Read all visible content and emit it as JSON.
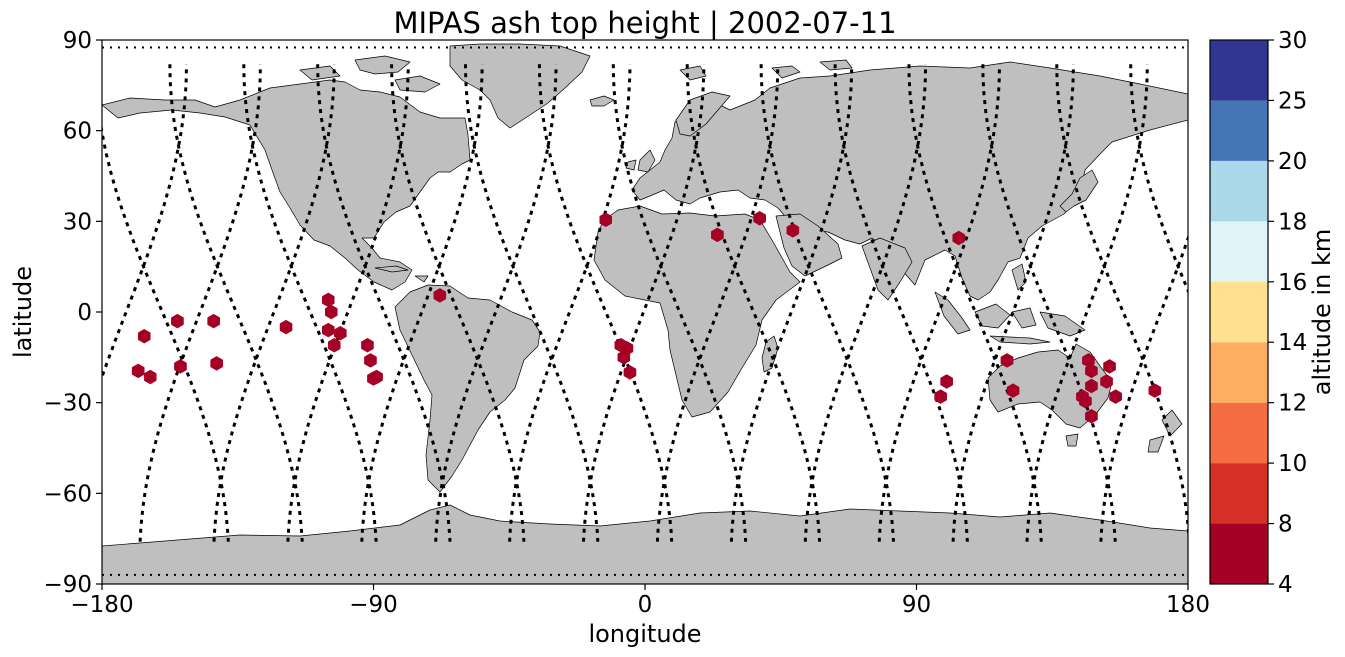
{
  "title": "MIPAS ash top height | 2002-07-11",
  "axes": {
    "xlabel": "longitude",
    "ylabel": "latitude",
    "xlim": [
      -180,
      180
    ],
    "ylim": [
      -90,
      90
    ],
    "xticks": [
      -180,
      -90,
      0,
      90,
      180
    ],
    "yticks": [
      -90,
      -60,
      -30,
      0,
      30,
      60,
      90
    ],
    "xtick_labels": [
      "−180",
      "−90",
      "0",
      "90",
      "180"
    ],
    "ytick_labels": [
      "−90",
      "−60",
      "−30",
      "0",
      "30",
      "60",
      "90"
    ]
  },
  "colorbar": {
    "label": "altitude in km",
    "boundaries": [
      4,
      8,
      10,
      12,
      14,
      16,
      18,
      20,
      25,
      30
    ],
    "tick_labels": [
      "4",
      "8",
      "10",
      "12",
      "14",
      "16",
      "18",
      "20",
      "25",
      "30"
    ],
    "colors": [
      "#a50026",
      "#d73027",
      "#f46d43",
      "#fdae61",
      "#fee090",
      "#ffffbf",
      "#e0f3f8",
      "#abd9e9",
      "#74add1",
      "#4575b4",
      "#313695"
    ]
  },
  "colors": {
    "land": "#bfbfbf",
    "coast": "#000000",
    "ocean": "#ffffff",
    "track": "#000000",
    "marker": "#a50026"
  },
  "chart_data": {
    "type": "scatter",
    "projection": "equirectangular",
    "xlim": [
      -180,
      180
    ],
    "ylim": [
      -90,
      90
    ],
    "grid": false,
    "series": [
      {
        "marker": "hexagon",
        "altitude_class_km": [
          4,
          8
        ],
        "lon": [
          -164,
          -168,
          -166,
          -155,
          -154,
          -142,
          -143,
          -119,
          -105,
          -104,
          -105,
          -103,
          -101,
          -92,
          -91,
          -90,
          -89,
          -68,
          -13,
          -8,
          -7,
          -5,
          -6,
          24,
          38,
          49,
          104,
          120,
          122,
          147,
          148,
          148,
          148,
          146,
          145,
          153,
          154,
          156,
          169,
          100,
          98
        ],
        "lat": [
          -21.5,
          -19.5,
          -8,
          -3,
          -18,
          -17,
          -3,
          -5,
          4,
          0,
          -6,
          -11,
          -7,
          -11,
          -16,
          -22,
          -21.5,
          5.5,
          30.5,
          -11,
          -15,
          -20,
          -12,
          25.5,
          31,
          27,
          24.5,
          -16,
          -26,
          -16,
          -19.5,
          -24.5,
          -34.5,
          -29.5,
          -28,
          -23,
          -18,
          -28,
          -26,
          -23,
          -28
        ]
      }
    ],
    "tracks_note": "dashed"
  }
}
